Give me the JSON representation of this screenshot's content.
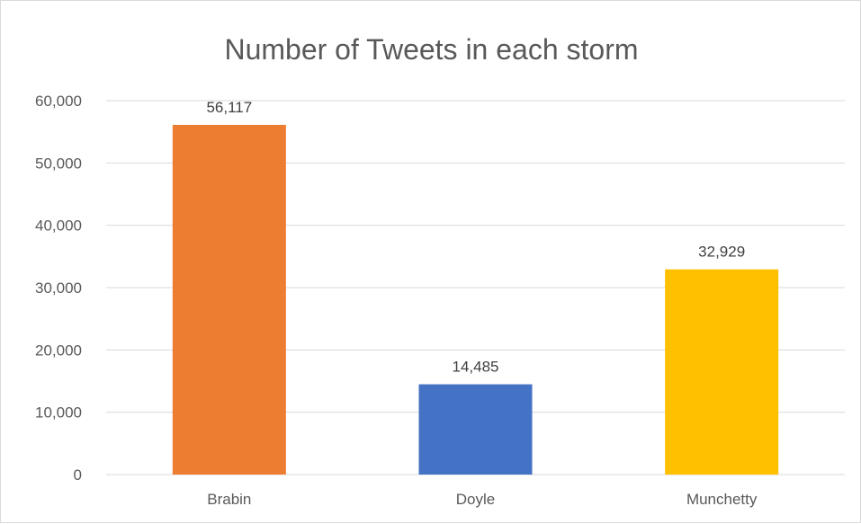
{
  "chart_data": {
    "type": "bar",
    "title": "Number of Tweets in each storm",
    "xlabel": "",
    "ylabel": "",
    "categories": [
      "Brabin",
      "Doyle",
      "Munchetty"
    ],
    "values": [
      56117,
      14485,
      32929
    ],
    "data_labels": [
      "56,117",
      "14,485",
      "32,929"
    ],
    "bar_colors": [
      "#ed7d31",
      "#4472c4",
      "#ffc000"
    ],
    "ylim": [
      0,
      60000
    ],
    "y_ticks": [
      0,
      10000,
      20000,
      30000,
      40000,
      50000,
      60000
    ],
    "y_tick_labels": [
      "0",
      "10,000",
      "20,000",
      "30,000",
      "40,000",
      "50,000",
      "60,000"
    ],
    "grid": true,
    "legend": "none"
  }
}
